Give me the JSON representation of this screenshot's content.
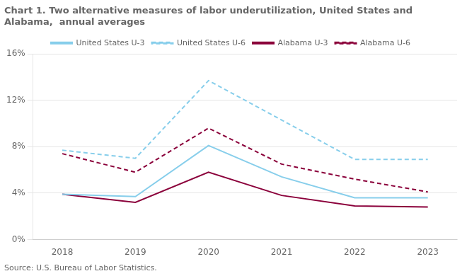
{
  "chart_data": {
    "type": "line",
    "title": [
      "Chart 1. Two alternative measures of labor underutilization, United States and",
      "Alabama,  annual averages"
    ],
    "annotations": [
      "Source: U.S. Bureau of Labor Statistics."
    ],
    "x": [
      2018,
      2019,
      2020,
      2021,
      2022,
      2023
    ],
    "series": [
      {
        "name": "United States U-3",
        "color": "#87CEEB",
        "line_style": "solid",
        "values": [
          3.9,
          3.7,
          8.1,
          5.4,
          3.6,
          3.6
        ]
      },
      {
        "name": "United States U-6",
        "color": "#87CEEB",
        "line_style": "dashed",
        "values": [
          7.7,
          7.0,
          13.7,
          10.3,
          6.9,
          6.9
        ]
      },
      {
        "name": "Alabama U-3",
        "color": "#8B003B",
        "line_style": "solid",
        "values": [
          3.9,
          3.2,
          5.8,
          3.8,
          2.9,
          2.8
        ]
      },
      {
        "name": "Alabama U-6",
        "color": "#8B003B",
        "line_style": "dashed",
        "values": [
          7.4,
          5.8,
          9.6,
          6.5,
          5.2,
          4.1
        ]
      }
    ],
    "xlim": [
      2017.6,
      2023.4
    ],
    "xticks": [
      2018,
      2019,
      2020,
      2021,
      2022,
      2023
    ],
    "ylim": [
      0,
      16
    ],
    "yticks": [
      {
        "value": 0,
        "label": "0%"
      },
      {
        "value": 4,
        "label": "4%"
      },
      {
        "value": 8,
        "label": "8%"
      },
      {
        "value": 12,
        "label": "12%"
      },
      {
        "value": 16,
        "label": "16%"
      }
    ],
    "grid": "y",
    "legend": "top"
  }
}
